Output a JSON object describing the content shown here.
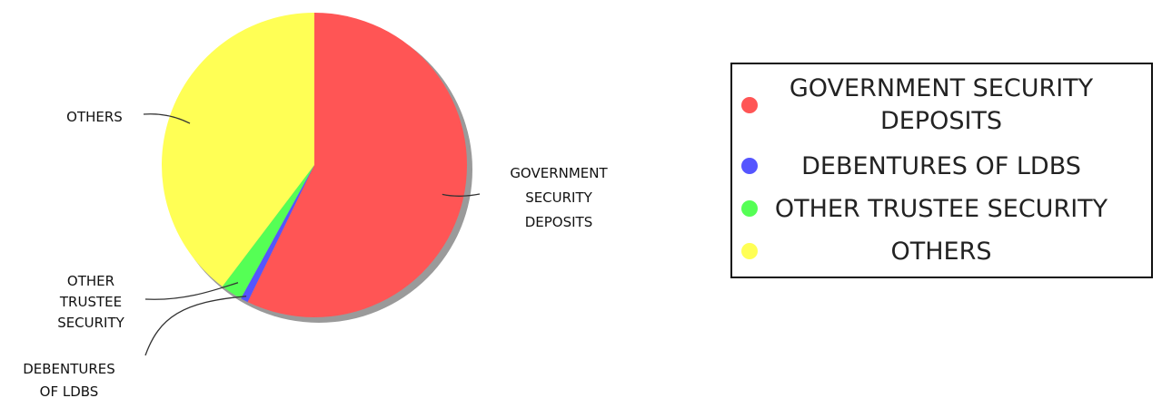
{
  "chart_data": {
    "type": "pie",
    "title": "",
    "legend": "right",
    "slices": [
      {
        "name": "GOVERNMENT SECURITY DEPOSITS",
        "value": 57.2,
        "color": "#ff5555",
        "label_lines": [
          "GOVERNMENT",
          "SECURITY",
          "DEPOSITS"
        ],
        "legend_lines": [
          "GOVERNMENT SECURITY",
          "DEPOSITS"
        ]
      },
      {
        "name": "DEBENTURES OF LDBS",
        "value": 0.8,
        "color": "#5555ff",
        "label_lines": [
          "DEBENTURES",
          "OF LDBS"
        ],
        "legend_lines": [
          "DEBENTURES OF LDBS"
        ]
      },
      {
        "name": "OTHER TRUSTEE SECURITY",
        "value": 2.3,
        "color": "#55ff55",
        "label_lines": [
          "OTHER",
          "TRUSTEE",
          "SECURITY"
        ],
        "legend_lines": [
          "OTHER TRUSTEE SECURITY"
        ]
      },
      {
        "name": "OTHERS",
        "value": 39.7,
        "color": "#ffff55",
        "label_lines": [
          "OTHERS"
        ],
        "legend_lines": [
          "OTHERS"
        ]
      }
    ]
  }
}
